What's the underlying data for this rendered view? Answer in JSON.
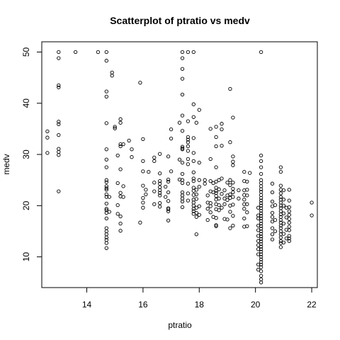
{
  "chart_data": {
    "type": "scatter",
    "title": "Scatterplot of ptratio vs medv",
    "xlabel": "ptratio",
    "ylabel": "medv",
    "xlim": [
      12.4,
      22.2
    ],
    "ylim": [
      4,
      52
    ],
    "xticks": [
      14,
      16,
      18,
      20,
      22
    ],
    "yticks": [
      10,
      20,
      30,
      40,
      50
    ],
    "grid": false,
    "points": [
      [
        12.6,
        34.5
      ],
      [
        12.6,
        33.3
      ],
      [
        12.6,
        30.3
      ],
      [
        13.0,
        50.0
      ],
      [
        13.0,
        48.8
      ],
      [
        13.0,
        43.5
      ],
      [
        13.0,
        43.1
      ],
      [
        13.0,
        36.4
      ],
      [
        13.0,
        35.9
      ],
      [
        13.0,
        33.8
      ],
      [
        13.0,
        31.1
      ],
      [
        13.0,
        30.5
      ],
      [
        13.0,
        29.9
      ],
      [
        13.0,
        22.8
      ],
      [
        13.6,
        50.0
      ],
      [
        14.4,
        50.0
      ],
      [
        14.7,
        50.0
      ],
      [
        14.7,
        48.3
      ],
      [
        14.7,
        42.3
      ],
      [
        14.7,
        41.3
      ],
      [
        14.7,
        36.1
      ],
      [
        14.7,
        31.0
      ],
      [
        14.7,
        29.0
      ],
      [
        14.7,
        27.5
      ],
      [
        14.7,
        25.0
      ],
      [
        14.7,
        24.6
      ],
      [
        14.7,
        23.8
      ],
      [
        14.7,
        23.4
      ],
      [
        14.7,
        23.1
      ],
      [
        14.7,
        22.2
      ],
      [
        14.7,
        21.7
      ],
      [
        14.7,
        20.4
      ],
      [
        14.7,
        19.4
      ],
      [
        14.7,
        19.1
      ],
      [
        14.7,
        18.6
      ],
      [
        14.7,
        17.5
      ],
      [
        14.7,
        15.6
      ],
      [
        14.7,
        15.0
      ],
      [
        14.7,
        14.4
      ],
      [
        14.7,
        13.8
      ],
      [
        14.7,
        13.3
      ],
      [
        14.7,
        12.7
      ],
      [
        14.7,
        11.7
      ],
      [
        14.8,
        21.7
      ],
      [
        14.8,
        18.8
      ],
      [
        14.9,
        46.0
      ],
      [
        14.9,
        45.4
      ],
      [
        15.0,
        35.4
      ],
      [
        15.0,
        35.1
      ],
      [
        15.1,
        29.8
      ],
      [
        15.1,
        24.4
      ],
      [
        15.1,
        20.1
      ],
      [
        15.1,
        18.4
      ],
      [
        15.2,
        36.9
      ],
      [
        15.2,
        36.2
      ],
      [
        15.2,
        32.0
      ],
      [
        15.2,
        31.6
      ],
      [
        15.2,
        27.1
      ],
      [
        15.2,
        22.5
      ],
      [
        15.2,
        21.8
      ],
      [
        15.2,
        17.9
      ],
      [
        15.2,
        16.5
      ],
      [
        15.2,
        15.1
      ],
      [
        15.3,
        32.0
      ],
      [
        15.3,
        23.8
      ],
      [
        15.3,
        21.7
      ],
      [
        15.5,
        32.7
      ],
      [
        15.6,
        31.0
      ],
      [
        15.6,
        29.5
      ],
      [
        15.9,
        44.0
      ],
      [
        15.9,
        16.7
      ],
      [
        16.0,
        33.0
      ],
      [
        16.0,
        28.7
      ],
      [
        16.0,
        26.7
      ],
      [
        16.0,
        23.9
      ],
      [
        16.0,
        21.5
      ],
      [
        16.0,
        20.6
      ],
      [
        16.0,
        19.6
      ],
      [
        16.1,
        23.1
      ],
      [
        16.1,
        22.2
      ],
      [
        16.2,
        26.6
      ],
      [
        16.4,
        29.4
      ],
      [
        16.4,
        28.7
      ],
      [
        16.4,
        24.5
      ],
      [
        16.4,
        22.8
      ],
      [
        16.4,
        20.3
      ],
      [
        16.6,
        30.1
      ],
      [
        16.6,
        26.3
      ],
      [
        16.6,
        24.8
      ],
      [
        16.6,
        24.3
      ],
      [
        16.6,
        23.6
      ],
      [
        16.6,
        23.0
      ],
      [
        16.6,
        22.5
      ],
      [
        16.6,
        22.0
      ],
      [
        16.6,
        20.5
      ],
      [
        16.6,
        19.8
      ],
      [
        16.8,
        23.7
      ],
      [
        16.8,
        21.7
      ],
      [
        16.9,
        29.6
      ],
      [
        16.9,
        25.1
      ],
      [
        16.9,
        24.7
      ],
      [
        16.9,
        22.6
      ],
      [
        16.9,
        20.9
      ],
      [
        16.9,
        19.5
      ],
      [
        16.9,
        19.3
      ],
      [
        16.9,
        18.9
      ],
      [
        16.9,
        17.1
      ],
      [
        17.0,
        34.9
      ],
      [
        17.0,
        33.1
      ],
      [
        17.0,
        26.7
      ],
      [
        17.3,
        36.2
      ],
      [
        17.3,
        29.0
      ],
      [
        17.3,
        25.1
      ],
      [
        17.4,
        50.0
      ],
      [
        17.4,
        48.8
      ],
      [
        17.4,
        46.7
      ],
      [
        17.4,
        44.8
      ],
      [
        17.4,
        41.7
      ],
      [
        17.4,
        37.6
      ],
      [
        17.4,
        34.6
      ],
      [
        17.4,
        31.5
      ],
      [
        17.4,
        31.2
      ],
      [
        17.4,
        31.0
      ],
      [
        17.4,
        28.4
      ],
      [
        17.4,
        26.2
      ],
      [
        17.4,
        25.0
      ],
      [
        17.4,
        24.4
      ],
      [
        17.4,
        22.6
      ],
      [
        17.4,
        22.0
      ],
      [
        17.4,
        21.4
      ],
      [
        17.4,
        20.8
      ],
      [
        17.4,
        19.7
      ],
      [
        17.6,
        50.0
      ],
      [
        17.6,
        36.5
      ],
      [
        17.6,
        33.4
      ],
      [
        17.6,
        32.9
      ],
      [
        17.6,
        32.4
      ],
      [
        17.6,
        31.6
      ],
      [
        17.6,
        30.7
      ],
      [
        17.6,
        29.1
      ],
      [
        17.6,
        28.1
      ],
      [
        17.6,
        24.3
      ],
      [
        17.6,
        22.4
      ],
      [
        17.6,
        21.0
      ],
      [
        17.8,
        50.0
      ],
      [
        17.8,
        39.8
      ],
      [
        17.8,
        37.3
      ],
      [
        17.8,
        33.2
      ],
      [
        17.8,
        30.3
      ],
      [
        17.8,
        28.7
      ],
      [
        17.8,
        26.5
      ],
      [
        17.8,
        25.3
      ],
      [
        17.8,
        24.8
      ],
      [
        17.8,
        23.5
      ],
      [
        17.8,
        22.9
      ],
      [
        17.8,
        22.1
      ],
      [
        17.8,
        21.2
      ],
      [
        17.8,
        20.6
      ],
      [
        17.8,
        20.0
      ],
      [
        17.8,
        19.4
      ],
      [
        17.8,
        18.9
      ],
      [
        17.8,
        18.4
      ],
      [
        17.9,
        36.2
      ],
      [
        17.9,
        23.1
      ],
      [
        17.9,
        22.2
      ],
      [
        17.9,
        21.3
      ],
      [
        17.9,
        19.6
      ],
      [
        17.9,
        18.6
      ],
      [
        17.9,
        17.8
      ],
      [
        17.9,
        14.4
      ],
      [
        18.0,
        38.7
      ],
      [
        18.0,
        28.4
      ],
      [
        18.0,
        25.0
      ],
      [
        18.0,
        23.7
      ],
      [
        18.0,
        19.9
      ],
      [
        18.0,
        18.2
      ],
      [
        18.2,
        25.0
      ],
      [
        18.2,
        24.3
      ],
      [
        18.3,
        22.0
      ],
      [
        18.3,
        20.6
      ],
      [
        18.3,
        19.4
      ],
      [
        18.3,
        17.2
      ],
      [
        18.4,
        35.0
      ],
      [
        18.4,
        29.1
      ],
      [
        18.4,
        24.8
      ],
      [
        18.4,
        22.8
      ],
      [
        18.4,
        20.5
      ],
      [
        18.4,
        19.9
      ],
      [
        18.4,
        18.7
      ],
      [
        18.5,
        24.4
      ],
      [
        18.5,
        22.6
      ],
      [
        18.5,
        17.8
      ],
      [
        18.6,
        35.4
      ],
      [
        18.6,
        33.4
      ],
      [
        18.6,
        31.6
      ],
      [
        18.6,
        27.5
      ],
      [
        18.6,
        24.7
      ],
      [
        18.6,
        23.5
      ],
      [
        18.6,
        22.9
      ],
      [
        18.6,
        22.5
      ],
      [
        18.6,
        21.9
      ],
      [
        18.6,
        21.2
      ],
      [
        18.6,
        20.3
      ],
      [
        18.6,
        19.3
      ],
      [
        18.6,
        17.6
      ],
      [
        18.6,
        16.2
      ],
      [
        18.6,
        16.0
      ],
      [
        18.7,
        25.0
      ],
      [
        18.7,
        23.2
      ],
      [
        18.7,
        21.4
      ],
      [
        18.7,
        20.1
      ],
      [
        18.7,
        19.1
      ],
      [
        18.8,
        36.0
      ],
      [
        18.8,
        34.9
      ],
      [
        18.8,
        31.7
      ],
      [
        18.8,
        25.3
      ],
      [
        18.8,
        22.3
      ],
      [
        18.8,
        19.6
      ],
      [
        18.9,
        23.0
      ],
      [
        18.9,
        21.4
      ],
      [
        18.9,
        20.3
      ],
      [
        18.9,
        17.4
      ],
      [
        19.0,
        24.5
      ],
      [
        19.0,
        22.0
      ],
      [
        19.0,
        21.1
      ],
      [
        19.0,
        17.3
      ],
      [
        19.1,
        42.8
      ],
      [
        19.1,
        32.4
      ],
      [
        19.1,
        25.0
      ],
      [
        19.1,
        24.0
      ],
      [
        19.1,
        22.2
      ],
      [
        19.1,
        21.5
      ],
      [
        19.1,
        20.0
      ],
      [
        19.1,
        18.8
      ],
      [
        19.1,
        15.6
      ],
      [
        19.2,
        37.2
      ],
      [
        19.2,
        29.6
      ],
      [
        19.2,
        28.6
      ],
      [
        19.2,
        27.9
      ],
      [
        19.2,
        24.5
      ],
      [
        19.2,
        23.3
      ],
      [
        19.2,
        22.6
      ],
      [
        19.2,
        21.7
      ],
      [
        19.2,
        20.2
      ],
      [
        19.2,
        18.0
      ],
      [
        19.2,
        16.1
      ],
      [
        19.4,
        23.0
      ],
      [
        19.4,
        21.4
      ],
      [
        19.6,
        26.6
      ],
      [
        19.6,
        24.8
      ],
      [
        19.6,
        23.0
      ],
      [
        19.6,
        22.1
      ],
      [
        19.6,
        21.2
      ],
      [
        19.6,
        20.3
      ],
      [
        19.6,
        19.4
      ],
      [
        19.6,
        17.5
      ],
      [
        19.6,
        15.9
      ],
      [
        19.7,
        24.7
      ],
      [
        19.7,
        23.1
      ],
      [
        19.7,
        22.0
      ],
      [
        19.7,
        20.3
      ],
      [
        19.7,
        18.7
      ],
      [
        19.7,
        16.0
      ],
      [
        19.8,
        26.4
      ],
      [
        20.1,
        19.6
      ],
      [
        20.1,
        18.1
      ],
      [
        20.1,
        17.5
      ],
      [
        20.1,
        16.1
      ],
      [
        20.1,
        15.2
      ],
      [
        20.1,
        14.1
      ],
      [
        20.1,
        13.1
      ],
      [
        20.1,
        12.3
      ],
      [
        20.1,
        11.5
      ],
      [
        20.1,
        10.5
      ],
      [
        20.1,
        8.5
      ],
      [
        20.1,
        7.5
      ],
      [
        20.2,
        50.0
      ],
      [
        20.2,
        29.8
      ],
      [
        20.2,
        28.7
      ],
      [
        20.2,
        27.5
      ],
      [
        20.2,
        26.2
      ],
      [
        20.2,
        25.0
      ],
      [
        20.2,
        24.4
      ],
      [
        20.2,
        23.8
      ],
      [
        20.2,
        23.2
      ],
      [
        20.2,
        22.7
      ],
      [
        20.2,
        22.1
      ],
      [
        20.2,
        21.5
      ],
      [
        20.2,
        21.0
      ],
      [
        20.2,
        20.5
      ],
      [
        20.2,
        20.0
      ],
      [
        20.2,
        19.5
      ],
      [
        20.2,
        19.0
      ],
      [
        20.2,
        18.5
      ],
      [
        20.2,
        18.0
      ],
      [
        20.2,
        17.5
      ],
      [
        20.2,
        17.0
      ],
      [
        20.2,
        16.5
      ],
      [
        20.2,
        16.0
      ],
      [
        20.2,
        15.5
      ],
      [
        20.2,
        15.0
      ],
      [
        20.2,
        14.5
      ],
      [
        20.2,
        14.0
      ],
      [
        20.2,
        13.5
      ],
      [
        20.2,
        13.0
      ],
      [
        20.2,
        12.5
      ],
      [
        20.2,
        12.0
      ],
      [
        20.2,
        11.5
      ],
      [
        20.2,
        11.0
      ],
      [
        20.2,
        10.5
      ],
      [
        20.2,
        10.0
      ],
      [
        20.2,
        9.5
      ],
      [
        20.2,
        9.0
      ],
      [
        20.2,
        8.5
      ],
      [
        20.2,
        8.0
      ],
      [
        20.2,
        7.2
      ],
      [
        20.2,
        6.3
      ],
      [
        20.2,
        5.6
      ],
      [
        20.2,
        5.0
      ],
      [
        20.6,
        24.3
      ],
      [
        20.6,
        22.6
      ],
      [
        20.6,
        20.8
      ],
      [
        20.6,
        19.9
      ],
      [
        20.6,
        18.6
      ],
      [
        20.6,
        17.8
      ],
      [
        20.6,
        16.9
      ],
      [
        20.6,
        15.6
      ],
      [
        20.6,
        14.4
      ],
      [
        20.6,
        13.4
      ],
      [
        20.7,
        20.1
      ],
      [
        20.7,
        17.2
      ],
      [
        20.7,
        15.0
      ],
      [
        20.9,
        27.5
      ],
      [
        20.9,
        26.6
      ],
      [
        20.9,
        23.9
      ],
      [
        20.9,
        23.1
      ],
      [
        20.9,
        22.4
      ],
      [
        20.9,
        21.7
      ],
      [
        20.9,
        21.2
      ],
      [
        20.9,
        20.6
      ],
      [
        20.9,
        20.0
      ],
      [
        20.9,
        19.5
      ],
      [
        20.9,
        18.9
      ],
      [
        20.9,
        18.3
      ],
      [
        20.9,
        17.8
      ],
      [
        20.9,
        17.2
      ],
      [
        20.9,
        16.7
      ],
      [
        20.9,
        16.1
      ],
      [
        20.9,
        15.6
      ],
      [
        20.9,
        15.0
      ],
      [
        20.9,
        14.4
      ],
      [
        20.9,
        13.8
      ],
      [
        20.9,
        13.1
      ],
      [
        20.9,
        12.7
      ],
      [
        20.9,
        11.9
      ],
      [
        21.0,
        23.0
      ],
      [
        21.0,
        21.2
      ],
      [
        21.0,
        20.0
      ],
      [
        21.0,
        18.5
      ],
      [
        21.0,
        16.5
      ],
      [
        21.0,
        14.5
      ],
      [
        21.0,
        12.8
      ],
      [
        21.1,
        19.6
      ],
      [
        21.1,
        17.7
      ],
      [
        21.1,
        15.3
      ],
      [
        21.1,
        13.6
      ],
      [
        21.2,
        23.1
      ],
      [
        21.2,
        21.0
      ],
      [
        21.2,
        19.7
      ],
      [
        21.2,
        18.9
      ],
      [
        21.2,
        18.2
      ],
      [
        21.2,
        17.4
      ],
      [
        21.2,
        16.7
      ],
      [
        21.2,
        15.9
      ],
      [
        21.2,
        15.2
      ],
      [
        21.2,
        14.1
      ],
      [
        21.2,
        13.6
      ],
      [
        21.2,
        13.1
      ],
      [
        22.0,
        20.6
      ],
      [
        22.0,
        18.1
      ]
    ]
  }
}
